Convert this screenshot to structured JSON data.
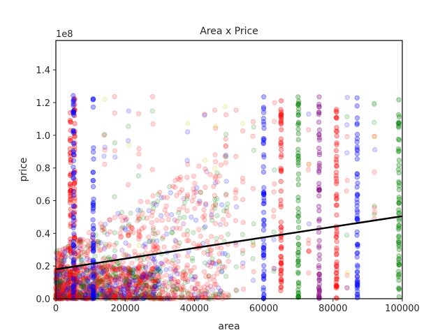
{
  "chart_data": {
    "type": "scatter",
    "title": "Area x Price",
    "xlabel": "area",
    "ylabel": "price",
    "y_multiplier_label": "1e8",
    "xlim": [
      0,
      100000
    ],
    "ylim": [
      0,
      1.58
    ],
    "x_ticks": [
      0,
      20000,
      40000,
      60000,
      80000,
      100000
    ],
    "y_ticks": [
      0.0,
      0.2,
      0.4,
      0.6,
      0.8,
      1.0,
      1.2,
      1.4
    ],
    "x_tick_labels": [
      "0",
      "20000",
      "40000",
      "60000",
      "80000",
      "100000"
    ],
    "y_tick_labels": [
      "0.0",
      "0.2",
      "0.4",
      "0.6",
      "0.8",
      "1.0",
      "1.2",
      "1.4"
    ],
    "grid": false,
    "series_colors": {
      "red": "#ff0000",
      "blue": "#0000ff",
      "green": "#008000",
      "yellow": "#c8c800",
      "purple": "#800080"
    },
    "regression_line": {
      "x": [
        0,
        100000
      ],
      "y": [
        0.18,
        0.505
      ],
      "color": "#000000"
    },
    "vertical_clusters": [
      {
        "x": 4200,
        "y_min": 0.0,
        "y_max": 1.25,
        "color": "red"
      },
      {
        "x": 5400,
        "y_min": 0.0,
        "y_max": 1.25,
        "color": "red"
      },
      {
        "x": 5100,
        "y_min": 0.0,
        "y_max": 1.25,
        "color": "blue"
      },
      {
        "x": 10800,
        "y_min": 0.0,
        "y_max": 1.25,
        "color": "blue"
      },
      {
        "x": 60000,
        "y_min": 0.0,
        "y_max": 1.25,
        "color": "blue"
      },
      {
        "x": 65000,
        "y_min": 0.0,
        "y_max": 1.25,
        "color": "red"
      },
      {
        "x": 70000,
        "y_min": 0.0,
        "y_max": 1.25,
        "color": "green"
      },
      {
        "x": 76000,
        "y_min": 0.0,
        "y_max": 1.25,
        "color": "purple"
      },
      {
        "x": 81000,
        "y_min": 0.0,
        "y_max": 1.25,
        "color": "red"
      },
      {
        "x": 87000,
        "y_min": 0.0,
        "y_max": 1.25,
        "color": "blue"
      },
      {
        "x": 99000,
        "y_min": 0.0,
        "y_max": 1.25,
        "color": "green"
      }
    ]
  }
}
